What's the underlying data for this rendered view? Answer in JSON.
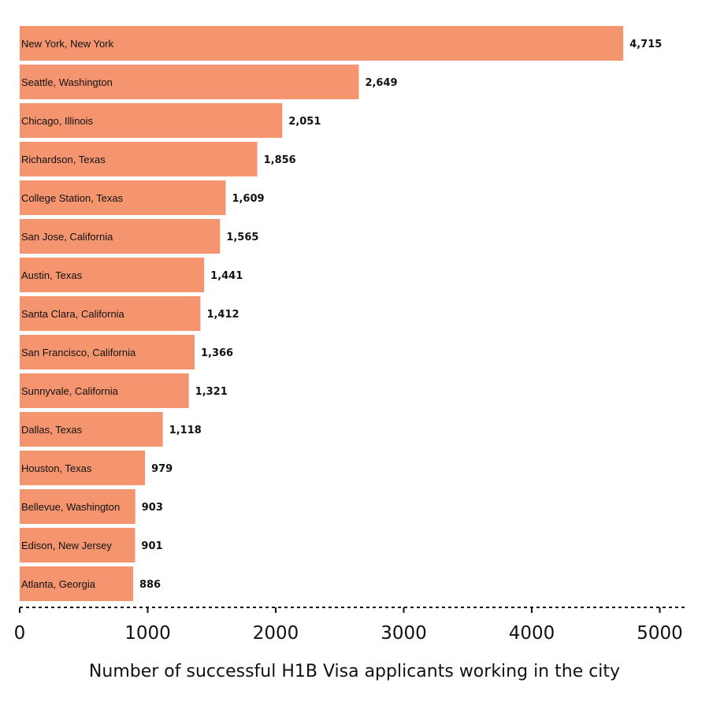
{
  "chart_data": {
    "type": "bar",
    "orientation": "horizontal",
    "categories": [
      "New York, New York",
      "Seattle, Washington",
      "Chicago, Illinois",
      "Richardson, Texas",
      "College Station, Texas",
      "San Jose, California",
      "Austin, Texas",
      "Santa Clara, California",
      "San Francisco, California",
      "Sunnyvale, California",
      "Dallas, Texas",
      "Houston, Texas",
      "Bellevue, Washington",
      "Edison, New Jersey",
      "Atlanta, Georgia"
    ],
    "values": [
      4715,
      2649,
      2051,
      1856,
      1609,
      1565,
      1441,
      1412,
      1366,
      1321,
      1118,
      979,
      903,
      901,
      886
    ],
    "value_labels": [
      "4,715",
      "2,649",
      "2,051",
      "1,856",
      "1,609",
      "1,565",
      "1,441",
      "1,412",
      "1,366",
      "1,321",
      "1,118",
      "979",
      "903",
      "901",
      "886"
    ],
    "xlabel": "Number of successful H1B Visa applicants working in the city",
    "ylabel": "",
    "xlim": [
      0,
      5200
    ],
    "xticks": [
      0,
      1000,
      2000,
      3000,
      4000,
      5000
    ],
    "xtick_labels": [
      "0",
      "1000",
      "2000",
      "3000",
      "4000",
      "5000"
    ],
    "grid": false,
    "legend": "none",
    "bar_color": "#f4956f"
  }
}
